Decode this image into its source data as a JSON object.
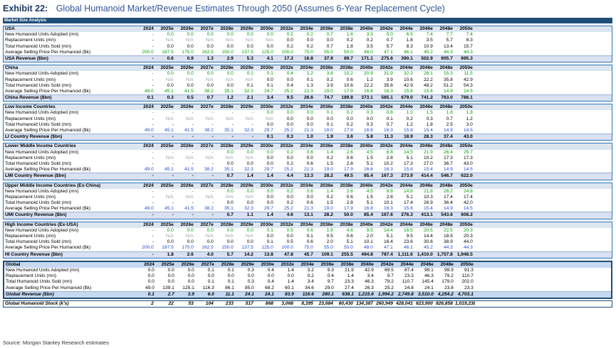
{
  "exhibit": {
    "label": "Exhibit 22:",
    "title": "Global Humanoid Market/Revenue Estimates Through 2050 (Assumes 6-Year Replacement Cycle)"
  },
  "table_header": "Market Size Analysis",
  "source": "Source: Morgan Stanley Research estimates",
  "colors": {
    "header_bg": "#1f4e79",
    "section_header_bg": "#dce6f1",
    "input_green": "#00a000",
    "input_blue": "#1f4bdc",
    "na_grey": "#9aa3ad"
  },
  "chart_data": {
    "type": "table",
    "title": "Global Humanoid Market/Revenue Estimates Through 2050 (Assumes 6-Year Replacement Cycle)",
    "years": [
      "2024",
      "2025e",
      "2026e",
      "2027e",
      "2028e",
      "2029e",
      "2030e",
      "2032e",
      "2034e",
      "2036e",
      "2038e",
      "2040e",
      "2042e",
      "2044e",
      "2046e",
      "2048e",
      "2050e"
    ],
    "sections": [
      {
        "name": "USA",
        "rows": [
          {
            "label": "New Humanoid Units Adopted (mn)",
            "color": "green",
            "values": [
              "-",
              "0.0",
              "0.0",
              "0.0",
              "0.0",
              "0.0",
              "0.0",
              "0.2",
              "0.2",
              "0.7",
              "1.6",
              "3.3",
              "5.0",
              "6.5",
              "7.4",
              "7.7",
              "7.4"
            ]
          },
          {
            "label": "Replacement Units (mn)",
            "color": "grey",
            "values": [
              "-",
              "N/A",
              "N/A",
              "N/A",
              "N/A",
              "N/A",
              "N/A",
              "0.0",
              "0.0",
              "0.0",
              "0.2",
              "0.2",
              "0.7",
              "1.8",
              "3.5",
              "5.7",
              "8.3"
            ]
          },
          {
            "label": "Total Humanoid Units Sold (mn)",
            "color": "black",
            "values": [
              "-",
              "0.0",
              "0.0",
              "0.0",
              "0.0",
              "0.0",
              "0.0",
              "0.2",
              "0.2",
              "0.7",
              "1.8",
              "3.5",
              "5.7",
              "8.3",
              "10.9",
              "13.4",
              "15.7"
            ]
          },
          {
            "label": "Average Selling Price Per Humanoid ($k)",
            "color": "green",
            "values": [
              "200.0",
              "187.5",
              "175.0",
              "162.5",
              "150.0",
              "137.5",
              "125.0",
              "100.0",
              "75.0",
              "55.0",
              "50.0",
              "48.0",
              "47.1",
              "46.1",
              "45.2",
              "44.3",
              "44.3"
            ]
          },
          {
            "label": "USA Revenue ($bn)",
            "total": true,
            "values": [
              "-",
              "0.6",
              "0.9",
              "1.3",
              "2.9",
              "5.3",
              "4.1",
              "17.3",
              "16.8",
              "37.9",
              "89.7",
              "171.1",
              "275.6",
              "390.1",
              "502.9",
              "605.7",
              "695.3"
            ]
          }
        ]
      },
      {
        "name": "China",
        "rows": [
          {
            "label": "New Humanoid Units Adopted (mn)",
            "color": "green",
            "values": [
              "-",
              "0.0",
              "0.0",
              "0.0",
              "0.0",
              "0.1",
              "0.1",
              "0.4",
              "1.2",
              "3.8",
              "10.2",
              "20.9",
              "31.9",
              "32.2",
              "26.1",
              "15.3",
              "11.5"
            ]
          },
          {
            "label": "Replacement Units (mn)",
            "color": "grey",
            "values": [
              "-",
              "N/A",
              "N/A",
              "N/A",
              "N/A",
              "N/A",
              "0.0",
              "0.0",
              "0.1",
              "0.2",
              "0.6",
              "1.2",
              "3.9",
              "10.6",
              "22.2",
              "35.8",
              "42.9"
            ]
          },
          {
            "label": "Total Humanoid Units Sold (mn)",
            "color": "black",
            "values": [
              "-",
              "0.0",
              "0.0",
              "0.0",
              "0.0",
              "0.1",
              "0.1",
              "0.4",
              "1.3",
              "3.9",
              "10.6",
              "22.2",
              "35.8",
              "42.9",
              "48.2",
              "51.2",
              "54.3"
            ]
          },
          {
            "label": "Average Selling Price Per Humanoid ($k)",
            "color": "green",
            "values": [
              "49.0",
              "45.1",
              "41.5",
              "38.2",
              "35.1",
              "32.3",
              "29.7",
              "25.2",
              "21.3",
              "19.0",
              "17.9",
              "16.8",
              "16.3",
              "15.8",
              "15.4",
              "14.9",
              "14.5"
            ]
          },
          {
            "label": "China Revenue ($bn)",
            "total": true,
            "values": [
              "0.1",
              "0.3",
              "0.5",
              "0.7",
              "1.2",
              "2.1",
              "3.4",
              "9.5",
              "26.6",
              "74.7",
              "189.8",
              "373.1",
              "585.1",
              "679.0",
              "741.2",
              "763.0",
              "786.1"
            ]
          }
        ]
      },
      {
        "name": "Low Income Countries",
        "rows": [
          {
            "label": "New Humanoid Units Adopted (mn)",
            "color": "green",
            "values": [
              "-",
              "-",
              "-",
              "-",
              "-",
              "-",
              "0.0",
              "0.0",
              "0.0",
              "0.1",
              "0.2",
              "0.3",
              "0.6",
              "1.0",
              "1.5",
              "1.8",
              "1.8"
            ]
          },
          {
            "label": "Replacement Units (mn)",
            "color": "grey",
            "values": [
              "-",
              "N/A",
              "N/A",
              "N/A",
              "N/A",
              "N/A",
              "N/A",
              "0.0",
              "0.0",
              "0.0",
              "0.0",
              "0.0",
              "0.1",
              "0.2",
              "0.3",
              "0.7",
              "1.2"
            ]
          },
          {
            "label": "Total Humanoid Units Sold (mn)",
            "color": "black",
            "values": [
              "-",
              "-",
              "-",
              "-",
              "-",
              "-",
              "0.0",
              "0.0",
              "0.0",
              "0.1",
              "0.2",
              "0.3",
              "0.7",
              "1.2",
              "1.8",
              "2.5",
              "3.0"
            ]
          },
          {
            "label": "Average Selling Price Per Humanoid ($k)",
            "color": "blue",
            "values": [
              "49.0",
              "45.1",
              "41.5",
              "38.2",
              "35.1",
              "32.3",
              "29.7",
              "25.2",
              "21.3",
              "19.0",
              "17.9",
              "16.8",
              "16.3",
              "15.8",
              "15.4",
              "14.9",
              "14.5"
            ]
          },
          {
            "label": "LI Country Revenue ($bn)",
            "total": true,
            "values": [
              "-",
              "-",
              "-",
              "-",
              "-",
              "-",
              "0.1",
              "0.3",
              "1.0",
              "1.9",
              "3.6",
              "5.8",
              "11.3",
              "18.9",
              "28.3",
              "37.4",
              "43.0"
            ]
          }
        ]
      },
      {
        "name": "Lower Middle Income Countries",
        "rows": [
          {
            "label": "New Humanoid Units Adopted (mn)",
            "color": "green",
            "values": [
              "-",
              "-",
              "-",
              "-",
              "0.0",
              "0.0",
              "0.0",
              "0.2",
              "0.6",
              "1.4",
              "2.6",
              "4.5",
              "8.8",
              "14.5",
              "21.9",
              "26.4",
              "25.7"
            ]
          },
          {
            "label": "Replacement Units (mn)",
            "color": "grey",
            "values": [
              "-",
              "N/A",
              "N/A",
              "N/A",
              "N/A",
              "N/A",
              "0.0",
              "0.0",
              "0.0",
              "0.2",
              "0.6",
              "1.5",
              "2.8",
              "5.1",
              "10.2",
              "17.3",
              "17.3"
            ]
          },
          {
            "label": "Total Humanoid Units Sold (mn)",
            "color": "black",
            "values": [
              "-",
              "-",
              "-",
              "-",
              "0.0",
              "0.0",
              "0.0",
              "0.2",
              "0.6",
              "1.5",
              "2.8",
              "5.1",
              "10.2",
              "17.3",
              "27.0",
              "36.7",
              "43.0"
            ]
          },
          {
            "label": "Average Selling Price Per Humanoid ($k)",
            "color": "blue",
            "values": [
              "49.0",
              "45.1",
              "41.5",
              "38.2",
              "35.1",
              "32.3",
              "29.7",
              "25.2",
              "21.3",
              "19.0",
              "17.9",
              "16.8",
              "16.3",
              "15.8",
              "15.4",
              "14.9",
              "14.5"
            ]
          },
          {
            "label": "LMI Country Revenue ($bn)",
            "total": true,
            "values": [
              "-",
              "-",
              "-",
              "-",
              "0.7",
              "1.4",
              "1.4",
              "4.4",
              "13.3",
              "28.2",
              "49.5",
              "85.4",
              "167.3",
              "273.9",
              "414.4",
              "546.7",
              "622.0"
            ]
          }
        ]
      },
      {
        "name": "Upper Middle Income Countries (Ex-China)",
        "rows": [
          {
            "label": "New Humanoid Units Adopted (mn)",
            "color": "green",
            "values": [
              "-",
              "-",
              "-",
              "-",
              "0.0",
              "0.0",
              "0.0",
              "0.2",
              "0.6",
              "1.4",
              "2.6",
              "4.5",
              "8.8",
              "14.6",
              "21.8",
              "26.2",
              "24.8"
            ]
          },
          {
            "label": "Replacement Units (mn)",
            "color": "grey",
            "values": [
              "-",
              "N/A",
              "N/A",
              "N/A",
              "N/A",
              "N/A",
              "0.0",
              "0.0",
              "0.0",
              "0.2",
              "0.6",
              "1.5",
              "2.8",
              "5.1",
              "10.3",
              "17.4",
              "17.4"
            ]
          },
          {
            "label": "Total Humanoid Units Sold (mn)",
            "color": "black",
            "values": [
              "-",
              "-",
              "-",
              "-",
              "0.0",
              "0.0",
              "0.0",
              "0.2",
              "0.6",
              "1.5",
              "2.8",
              "5.1",
              "10.1",
              "17.4",
              "26.9",
              "36.4",
              "42.0"
            ]
          },
          {
            "label": "Average Selling Price Per Humanoid ($k)",
            "color": "blue",
            "values": [
              "49.0",
              "45.1",
              "41.5",
              "38.2",
              "35.1",
              "32.3",
              "29.7",
              "25.2",
              "21.3",
              "19.0",
              "17.9",
              "16.8",
              "16.3",
              "15.8",
              "15.4",
              "14.9",
              "14.5"
            ]
          },
          {
            "label": "UMI Country Revenue ($bn)",
            "total": true,
            "values": [
              "-",
              "-",
              "-",
              "-",
              "0.7",
              "1.1",
              "1.4",
              "4.6",
              "13.1",
              "28.2",
              "50.0",
              "85.4",
              "167.6",
              "276.3",
              "413.1",
              "543.6",
              "608.2"
            ]
          }
        ]
      },
      {
        "name": "High Income Countries (Ex-USA)",
        "rows": [
          {
            "label": "New Humanoid Units Adopted (mn)",
            "color": "green",
            "values": [
              "-",
              "0.0",
              "0.0",
              "0.0",
              "0.0",
              "0.0",
              "0.1",
              "0.5",
              "0.6",
              "1.9",
              "4.6",
              "9.5",
              "14.4",
              "18.5",
              "20.5",
              "22.5",
              "20.3"
            ]
          },
          {
            "label": "Replacement Units (mn)",
            "color": "grey",
            "values": [
              "-",
              "N/A",
              "N/A",
              "N/A",
              "N/A",
              "N/A",
              "0.0",
              "0.0",
              "0.1",
              "0.5",
              "0.6",
              "2.0",
              "5.1",
              "9.5",
              "14.4",
              "18.5",
              "20.3"
            ]
          },
          {
            "label": "Total Humanoid Units Sold (mn)",
            "color": "black",
            "values": [
              "-",
              "0.0",
              "0.0",
              "0.0",
              "0.0",
              "0.0",
              "0.1",
              "0.5",
              "0.6",
              "2.0",
              "5.1",
              "10.1",
              "16.4",
              "23.6",
              "30.6",
              "38.9",
              "44.0"
            ]
          },
          {
            "label": "Average Selling Price Per Humanoid ($k)",
            "color": "blue",
            "values": [
              "200.0",
              "187.5",
              "175.0",
              "162.5",
              "150.0",
              "137.5",
              "125.0",
              "100.0",
              "75.0",
              "55.0",
              "50.0",
              "48.0",
              "47.1",
              "46.1",
              "45.2",
              "44.3",
              "44.3"
            ]
          },
          {
            "label": "HI Country Revenue ($bn)",
            "total": true,
            "values": [
              "-",
              "1.8",
              "2.6",
              "4.0",
              "5.7",
              "14.2",
              "13.8",
              "47.8",
              "45.7",
              "109.1",
              "255.5",
              "494.8",
              "787.4",
              "1,111.6",
              "1,410.0",
              "1,757.8",
              "1,948.5"
            ]
          }
        ]
      },
      {
        "name": "Global",
        "global": true,
        "rows": [
          {
            "label": "New Humanoid Units Adopted (mn)",
            "color": "black",
            "values": [
              "0.0",
              "0.0",
              "0.0",
              "0.1",
              "0.1",
              "0.3",
              "0.4",
              "1.4",
              "3.2",
              "9.3",
              "21.9",
              "42.9",
              "69.5",
              "87.4",
              "99.1",
              "99.9",
              "91.3"
            ]
          },
          {
            "label": "Replacement Units (mn)",
            "color": "black",
            "values": [
              "0.0",
              "0.0",
              "0.0",
              "0.0",
              "0.0",
              "0.0",
              "0.0",
              "0.0",
              "0.2",
              "0.4",
              "1.4",
              "3.4",
              "9.7",
              "23.3",
              "46.3",
              "79.2",
              "110.7"
            ]
          },
          {
            "label": "Total Humanoid Units Sold (mn)",
            "color": "black",
            "values": [
              "0.0",
              "0.0",
              "0.0",
              "0.1",
              "0.1",
              "0.3",
              "0.4",
              "1.4",
              "3.4",
              "9.7",
              "23.3",
              "46.3",
              "79.2",
              "110.7",
              "145.4",
              "179.0",
              "202.0"
            ]
          },
          {
            "label": "Average Selling Price Per Humanoid ($k)",
            "color": "black",
            "values": [
              "49.0",
              "139.1",
              "125.1",
              "116.3",
              "86.1",
              "85.0",
              "68.2",
              "60.1",
              "34.6",
              "29.0",
              "27.4",
              "26.3",
              "25.2",
              "24.8",
              "24.1",
              "23.8",
              "23.3"
            ]
          },
          {
            "label": "Global Revenue ($bn)",
            "total": true,
            "values": [
              "0.1",
              "2.7",
              "3.9",
              "6.0",
              "11.1",
              "24.1",
              "24.1",
              "83.9",
              "116.6",
              "280.1",
              "638.1",
              "1,215.6",
              "1,994.2",
              "2,749.8",
              "3,510.0",
              "4,254.2",
              "4,703.1"
            ]
          }
        ]
      }
    ],
    "stock_row": {
      "label": "Global Humanoid Stock (k's)",
      "values": [
        "2",
        "22",
        "53",
        "104",
        "233",
        "517",
        "868",
        "3,068",
        "8,395",
        "23,684",
        "60,430",
        "134,387",
        "260,949",
        "428,041",
        "623,900",
        "826,858",
        "1,019,238"
      ]
    }
  }
}
